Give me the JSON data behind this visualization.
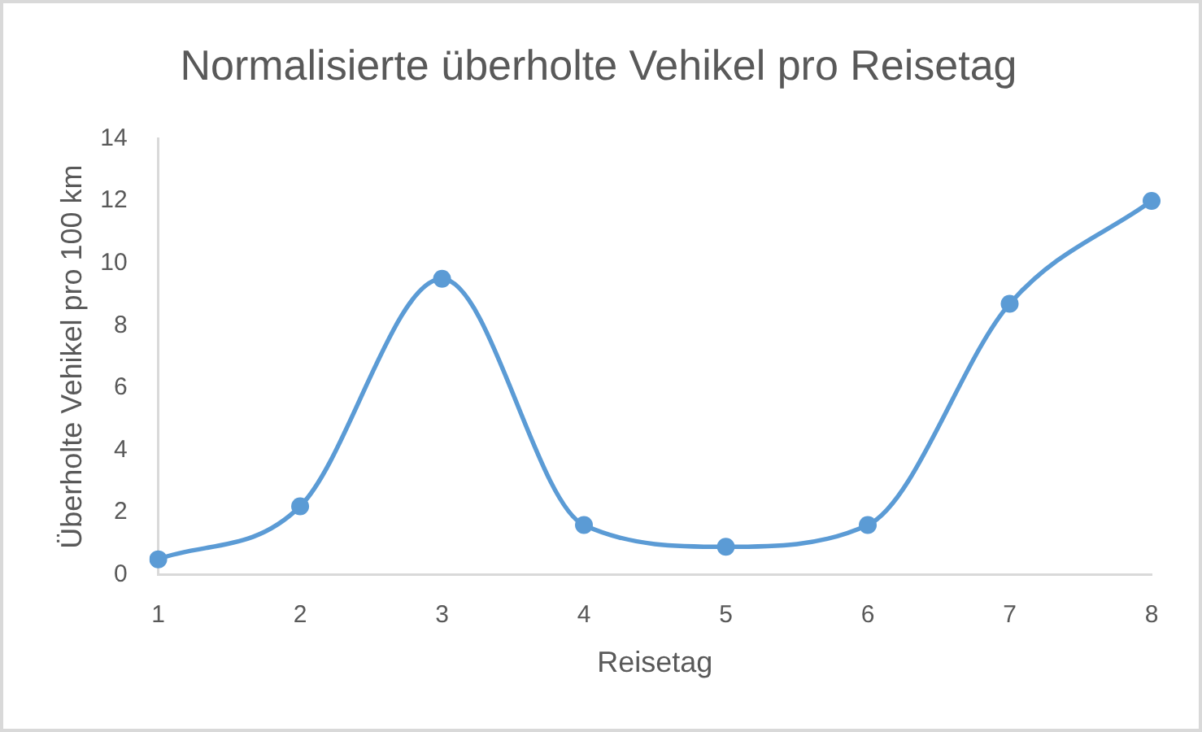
{
  "chart_data": {
    "type": "line",
    "title": "Normalisierte überholte Vehikel pro Reisetag",
    "xlabel": "Reisetag",
    "ylabel": "Überholte Vehikel pro 100 km",
    "categories": [
      "1",
      "2",
      "3",
      "4",
      "5",
      "6",
      "7",
      "8"
    ],
    "values": [
      0.5,
      2.2,
      9.5,
      1.6,
      0.9,
      1.6,
      8.7,
      12.0
    ],
    "color": "#5b9bd5",
    "ylim": [
      0,
      14
    ],
    "yticks": [
      0,
      2,
      4,
      6,
      8,
      10,
      12,
      14
    ],
    "grid": false,
    "legend": false,
    "marker": "circle",
    "line_style": "solid"
  }
}
